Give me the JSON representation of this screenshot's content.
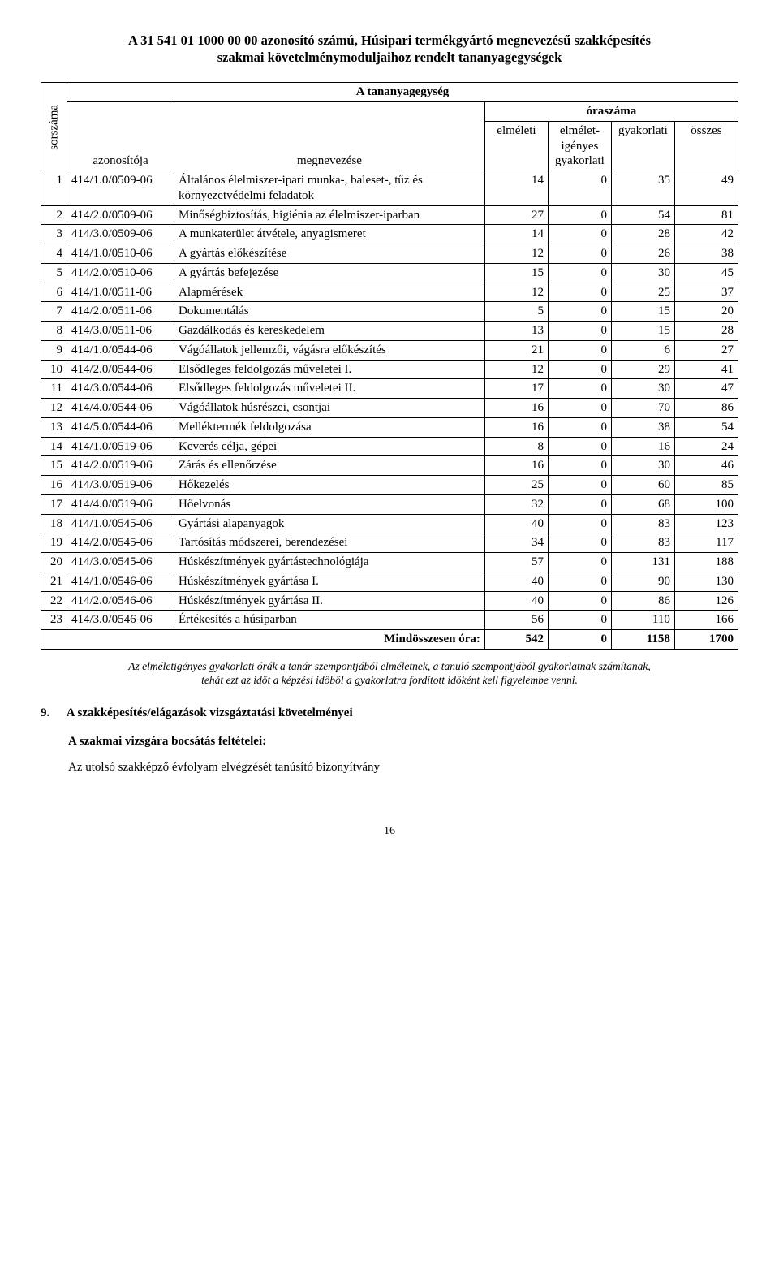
{
  "title_line1": "A 31 541 01 1000 00 00 azonosító számú, Húsipari termékgyártó megnevezésű szakképesítés",
  "title_line2": "szakmai követelménymoduljaihoz rendelt tananyagegységek",
  "header": {
    "sorszama": "sorszáma",
    "azonositoja": "azonosítója",
    "tanyag": "A tananyagegység",
    "megnevezese": "megnevezése",
    "oraszama": "óraszáma",
    "elmeleti": "elméleti",
    "elmeletigenyes": "elmélet-igényes gyakorlati",
    "gyakorlati": "gyakorlati",
    "osszes": "összes"
  },
  "rows": [
    {
      "n": "1",
      "az": "414/1.0/0509-06",
      "meg": "Általános élelmiszer-ipari munka-, baleset-, tűz és környezetvédelmi feladatok",
      "e": "14",
      "ei": "0",
      "g": "35",
      "o": "49"
    },
    {
      "n": "2",
      "az": "414/2.0/0509-06",
      "meg": "Minőségbiztosítás, higiénia az élelmiszer-iparban",
      "e": "27",
      "ei": "0",
      "g": "54",
      "o": "81"
    },
    {
      "n": "3",
      "az": "414/3.0/0509-06",
      "meg": "A munkaterület átvétele, anyagismeret",
      "e": "14",
      "ei": "0",
      "g": "28",
      "o": "42"
    },
    {
      "n": "4",
      "az": "414/1.0/0510-06",
      "meg": "A gyártás előkészítése",
      "e": "12",
      "ei": "0",
      "g": "26",
      "o": "38"
    },
    {
      "n": "5",
      "az": "414/2.0/0510-06",
      "meg": "A gyártás befejezése",
      "e": "15",
      "ei": "0",
      "g": "30",
      "o": "45"
    },
    {
      "n": "6",
      "az": "414/1.0/0511-06",
      "meg": "Alapmérések",
      "e": "12",
      "ei": "0",
      "g": "25",
      "o": "37"
    },
    {
      "n": "7",
      "az": "414/2.0/0511-06",
      "meg": "Dokumentálás",
      "e": "5",
      "ei": "0",
      "g": "15",
      "o": "20"
    },
    {
      "n": "8",
      "az": "414/3.0/0511-06",
      "meg": "Gazdálkodás és kereskedelem",
      "e": "13",
      "ei": "0",
      "g": "15",
      "o": "28"
    },
    {
      "n": "9",
      "az": "414/1.0/0544-06",
      "meg": "Vágóállatok jellemzői, vágásra előkészítés",
      "e": "21",
      "ei": "0",
      "g": "6",
      "o": "27"
    },
    {
      "n": "10",
      "az": "414/2.0/0544-06",
      "meg": "Elsődleges feldolgozás műveletei I.",
      "e": "12",
      "ei": "0",
      "g": "29",
      "o": "41"
    },
    {
      "n": "11",
      "az": "414/3.0/0544-06",
      "meg": "Elsődleges feldolgozás műveletei II.",
      "e": "17",
      "ei": "0",
      "g": "30",
      "o": "47"
    },
    {
      "n": "12",
      "az": "414/4.0/0544-06",
      "meg": "Vágóállatok húsrészei, csontjai",
      "e": "16",
      "ei": "0",
      "g": "70",
      "o": "86"
    },
    {
      "n": "13",
      "az": "414/5.0/0544-06",
      "meg": "Melléktermék feldolgozása",
      "e": "16",
      "ei": "0",
      "g": "38",
      "o": "54"
    },
    {
      "n": "14",
      "az": "414/1.0/0519-06",
      "meg": "Keverés célja, gépei",
      "e": "8",
      "ei": "0",
      "g": "16",
      "o": "24"
    },
    {
      "n": "15",
      "az": "414/2.0/0519-06",
      "meg": "Zárás és ellenőrzése",
      "e": "16",
      "ei": "0",
      "g": "30",
      "o": "46"
    },
    {
      "n": "16",
      "az": "414/3.0/0519-06",
      "meg": "Hőkezelés",
      "e": "25",
      "ei": "0",
      "g": "60",
      "o": "85"
    },
    {
      "n": "17",
      "az": "414/4.0/0519-06",
      "meg": "Hőelvonás",
      "e": "32",
      "ei": "0",
      "g": "68",
      "o": "100"
    },
    {
      "n": "18",
      "az": "414/1.0/0545-06",
      "meg": "Gyártási alapanyagok",
      "e": "40",
      "ei": "0",
      "g": "83",
      "o": "123"
    },
    {
      "n": "19",
      "az": "414/2.0/0545-06",
      "meg": "Tartósítás módszerei, berendezései",
      "e": "34",
      "ei": "0",
      "g": "83",
      "o": "117"
    },
    {
      "n": "20",
      "az": "414/3.0/0545-06",
      "meg": "Húskészítmények gyártástechnológiája",
      "e": "57",
      "ei": "0",
      "g": "131",
      "o": "188"
    },
    {
      "n": "21",
      "az": "414/1.0/0546-06",
      "meg": "Húskészítmények gyártása I.",
      "e": "40",
      "ei": "0",
      "g": "90",
      "o": "130"
    },
    {
      "n": "22",
      "az": "414/2.0/0546-06",
      "meg": "Húskészítmények gyártása II.",
      "e": "40",
      "ei": "0",
      "g": "86",
      "o": "126"
    },
    {
      "n": "23",
      "az": "414/3.0/0546-06",
      "meg": "Értékesítés a húsiparban",
      "e": "56",
      "ei": "0",
      "g": "110",
      "o": "166"
    }
  ],
  "sum": {
    "label": "Mindösszesen óra:",
    "e": "542",
    "ei": "0",
    "g": "1158",
    "o": "1700"
  },
  "note_line1": "Az elméletigényes gyakorlati órák a tanár szempontjából elméletnek, a tanuló szempontjából gyakorlatnak számítanak,",
  "note_line2": "tehát ezt az időt a képzési időből a gyakorlatra fordított időként kell figyelembe venni.",
  "section9_num": "9.",
  "section9_title": "A szakképesítés/elágazások vizsgáztatási követelményei",
  "section9_sub": "A szakmai vizsgára bocsátás feltételei:",
  "section9_text": "Az utolsó szakképző évfolyam elvégzését tanúsító bizonyítvány",
  "page_num": "16"
}
